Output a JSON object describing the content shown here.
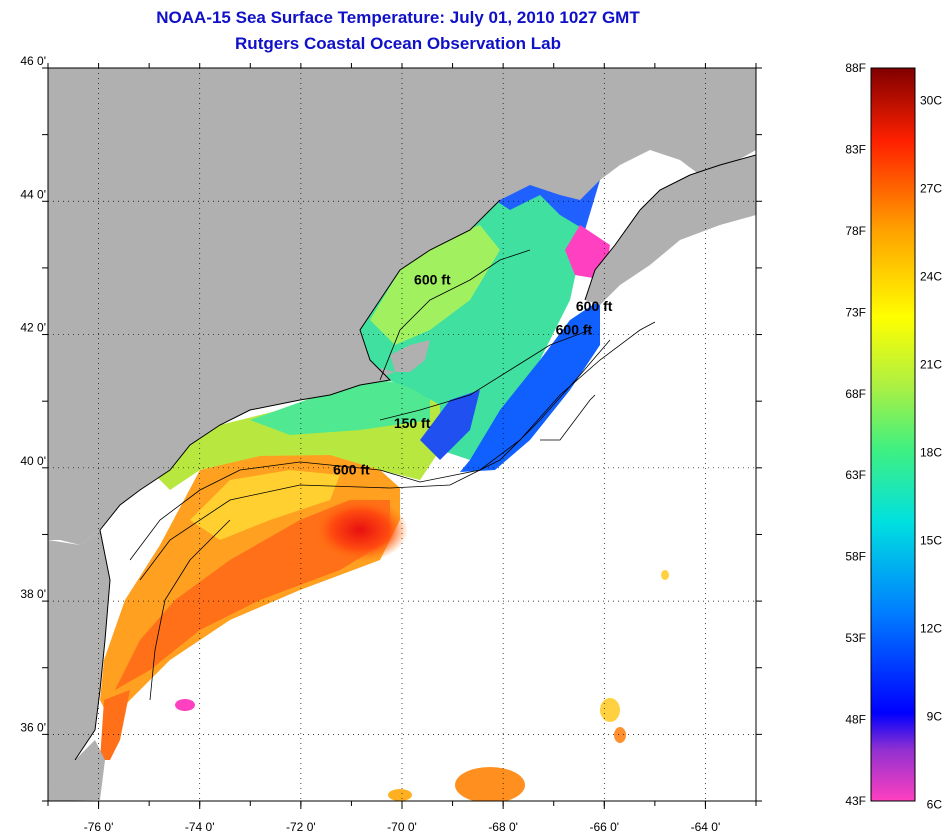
{
  "header": {
    "title": "NOAA-15 Sea Surface Temperature:  July 01, 2010 1027 GMT",
    "subtitle": "Rutgers Coastal Ocean Observation Lab"
  },
  "map": {
    "lon_range": [
      -77,
      -63
    ],
    "lat_range": [
      35,
      46
    ],
    "lon_ticks": [
      {
        "value": -76,
        "label": "-76 0'"
      },
      {
        "value": -74,
        "label": "-74 0'"
      },
      {
        "value": -72,
        "label": "-72 0'"
      },
      {
        "value": -70,
        "label": "-70 0'"
      },
      {
        "value": -68,
        "label": "-68 0'"
      },
      {
        "value": -66,
        "label": "-66 0'"
      },
      {
        "value": -64,
        "label": "-64 0'"
      }
    ],
    "lat_ticks": [
      {
        "value": 46,
        "label": "46 0'"
      },
      {
        "value": 44,
        "label": "44 0'"
      },
      {
        "value": 42,
        "label": "42 0'"
      },
      {
        "value": 40,
        "label": "40 0'"
      },
      {
        "value": 38,
        "label": "38 0'"
      },
      {
        "value": 36,
        "label": "36 0'"
      }
    ],
    "contour_labels": [
      {
        "text": "600 ft",
        "lon": -69.4,
        "lat": 42.75
      },
      {
        "text": "600 ft",
        "lon": -66.2,
        "lat": 42.35
      },
      {
        "text": "600 ft",
        "lon": -66.6,
        "lat": 42.0
      },
      {
        "text": "150 ft",
        "lon": -69.8,
        "lat": 40.6
      },
      {
        "text": "600 ft",
        "lon": -71.0,
        "lat": 39.9
      }
    ],
    "colors": {
      "land": "#b0b0b0",
      "nodata": "#ffffff",
      "coast": "#000000"
    }
  },
  "colorbar": {
    "min_f": 43,
    "max_f": 88,
    "f_labels": [
      "88F",
      "83F",
      "78F",
      "73F",
      "68F",
      "63F",
      "58F",
      "53F",
      "48F",
      "43F"
    ],
    "c_labels": [
      "30C",
      "27C",
      "24C",
      "21C",
      "18C",
      "15C",
      "12C",
      "9C",
      "6C"
    ],
    "c_values": [
      30,
      27,
      24,
      21,
      18,
      15,
      12,
      9,
      6
    ]
  }
}
